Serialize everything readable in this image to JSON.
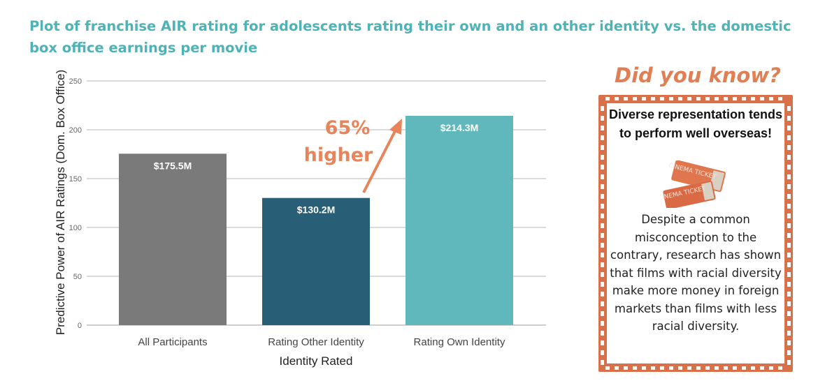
{
  "title": "Plot of franchise AIR rating for adolescents rating their own and an other identity vs. the domestic box office earnings per movie",
  "chart_data": {
    "type": "bar",
    "xlabel": "Identity Rated",
    "ylabel": "Predictive Power of AIR Ratings (Dom. Box Office)",
    "ylim": [
      0,
      250
    ],
    "yticks": [
      0,
      50,
      100,
      150,
      200,
      250
    ],
    "grid": true,
    "categories": [
      "All Participants",
      "Rating Other Identity",
      "Rating Own Identity"
    ],
    "values": [
      175.5,
      130.2,
      214.3
    ],
    "data_labels": [
      "$175.5M",
      "$130.2M",
      "$214.3M"
    ],
    "colors": [
      "#7a7a7a",
      "#285e76",
      "#60b8bc"
    ],
    "annotation": {
      "lines": [
        "65%",
        "higher"
      ],
      "color": "#e8845a"
    }
  },
  "did_you_know": {
    "title": "Did you know?",
    "headline": "Diverse representation tends to perform well overseas!",
    "icon": "cinema-ticket-icon",
    "ticket_text": "CINEMA TICKET",
    "body": "Despite a common misconception to the contrary, research has shown that films with racial diversity make more money in foreign markets than films with less racial diversity.",
    "frame_color": "#d8704a"
  }
}
